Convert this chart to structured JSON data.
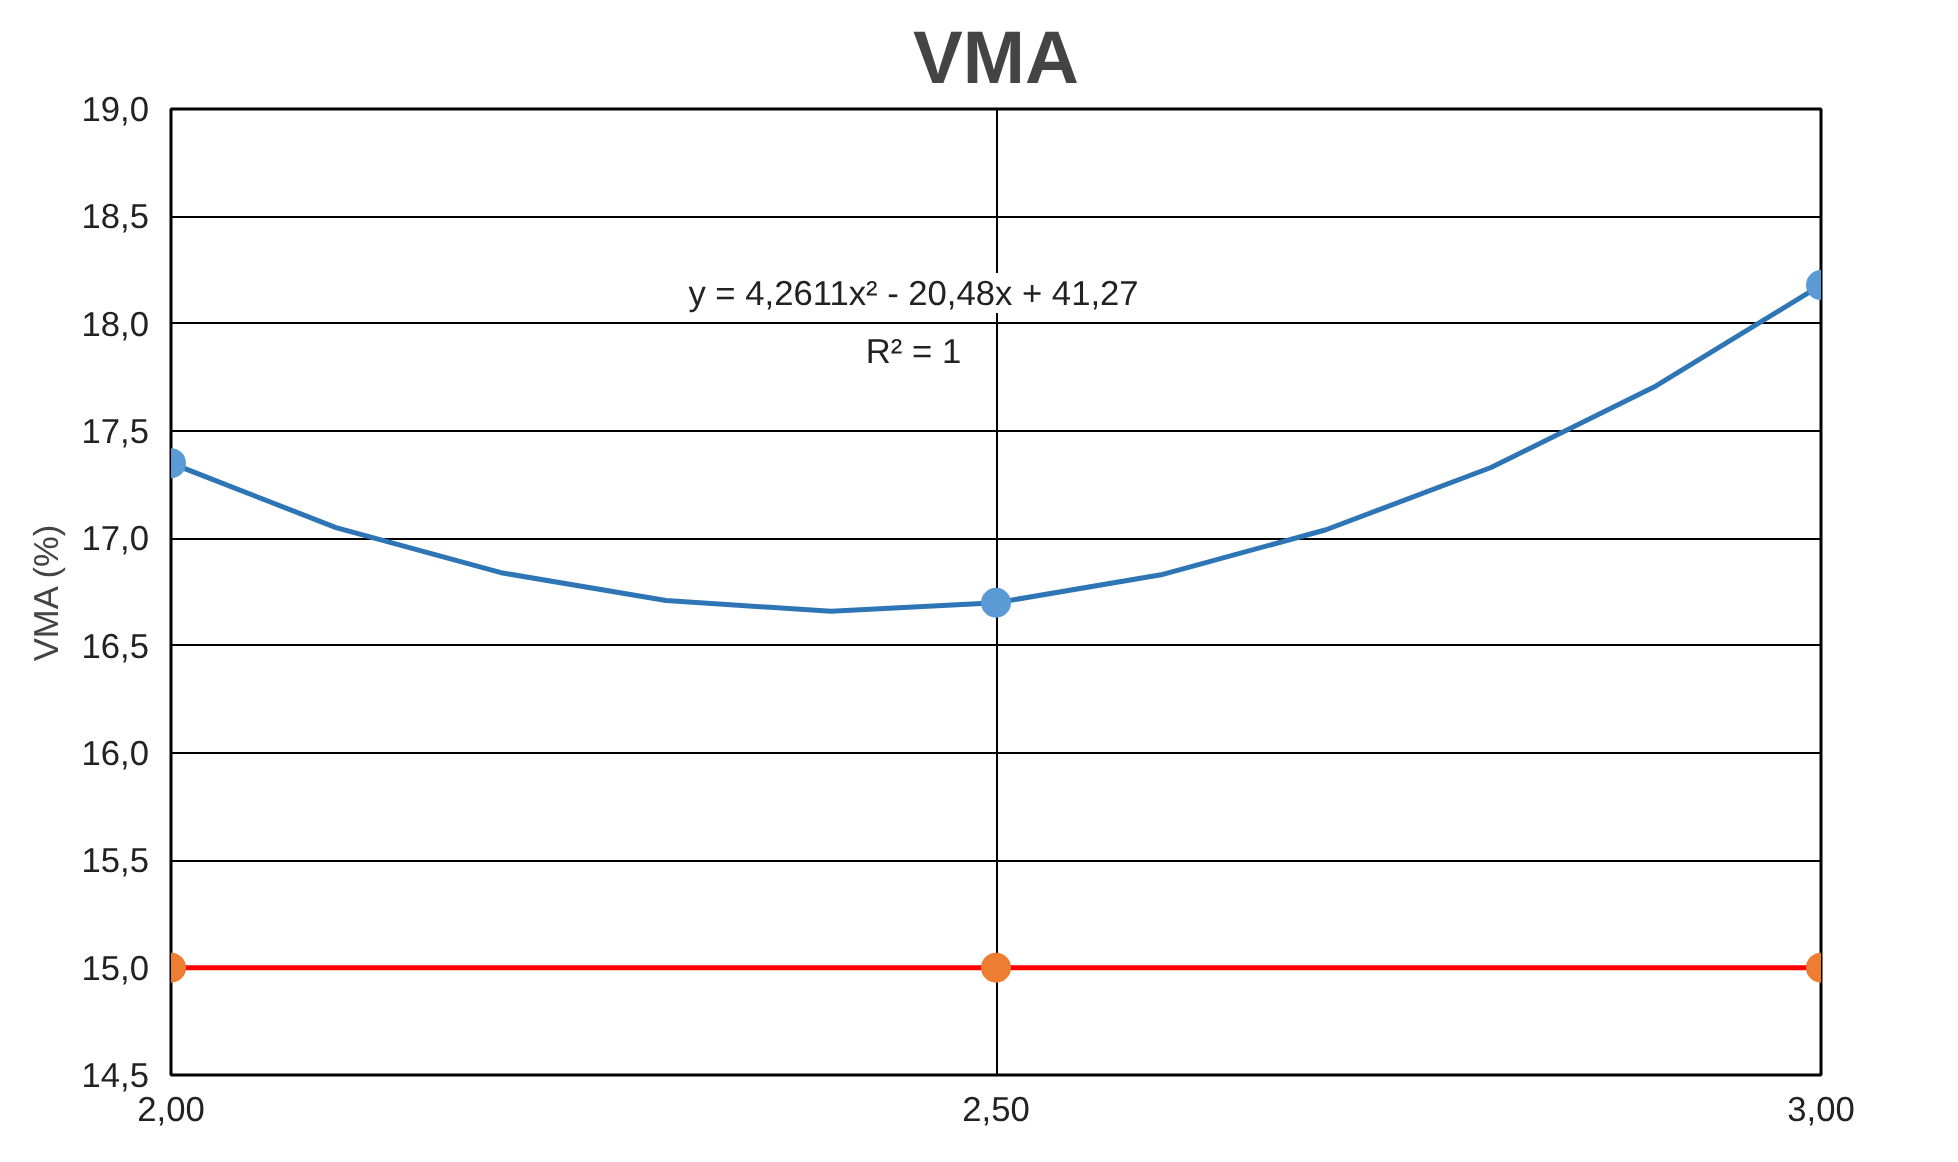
{
  "chart_data": {
    "type": "scatter",
    "title": "VMA",
    "ylabel": "VMA (%)",
    "x": [
      2.0,
      2.5,
      3.0
    ],
    "xlim": [
      2.0,
      3.0
    ],
    "xticks": [
      {
        "value": 2.0,
        "label": "2,00"
      },
      {
        "value": 2.5,
        "label": "2,50"
      },
      {
        "value": 3.0,
        "label": "3,00"
      }
    ],
    "ylim": [
      14.5,
      19.0
    ],
    "yticks": [
      {
        "value": 14.5,
        "label": "14,5"
      },
      {
        "value": 15.0,
        "label": "15,0"
      },
      {
        "value": 15.5,
        "label": "15,5"
      },
      {
        "value": 16.0,
        "label": "16,0"
      },
      {
        "value": 16.5,
        "label": "16,5"
      },
      {
        "value": 17.0,
        "label": "17,0"
      },
      {
        "value": 17.5,
        "label": "17,5"
      },
      {
        "value": 18.0,
        "label": "18,0"
      },
      {
        "value": 18.5,
        "label": "18,5"
      },
      {
        "value": 19.0,
        "label": "19,0"
      }
    ],
    "grid": true,
    "marker": "circle",
    "series": [
      {
        "type": "line",
        "color": "#2e75b6",
        "x": [
          2.0,
          2.1,
          2.2,
          2.3,
          2.4,
          2.5,
          2.6,
          2.7,
          2.8,
          2.9,
          3.0
        ],
        "values": [
          17.35,
          17.05,
          16.84,
          16.71,
          16.66,
          16.7,
          16.83,
          17.04,
          17.33,
          17.71,
          18.18
        ],
        "marker": "none"
      },
      {
        "type": "line",
        "color": "#ff0000",
        "values": [
          15.0,
          15.0,
          15.0
        ],
        "marker": "none"
      },
      {
        "color": "#5b9bd5",
        "values": [
          17.35,
          16.7,
          18.18
        ]
      },
      {
        "color": "#ed7d31",
        "values": [
          15.0,
          15.0,
          15.0
        ]
      }
    ],
    "annotations": [
      "y = 4,2611x² - 20,48x + 41,27",
      "R² = 1"
    ]
  }
}
